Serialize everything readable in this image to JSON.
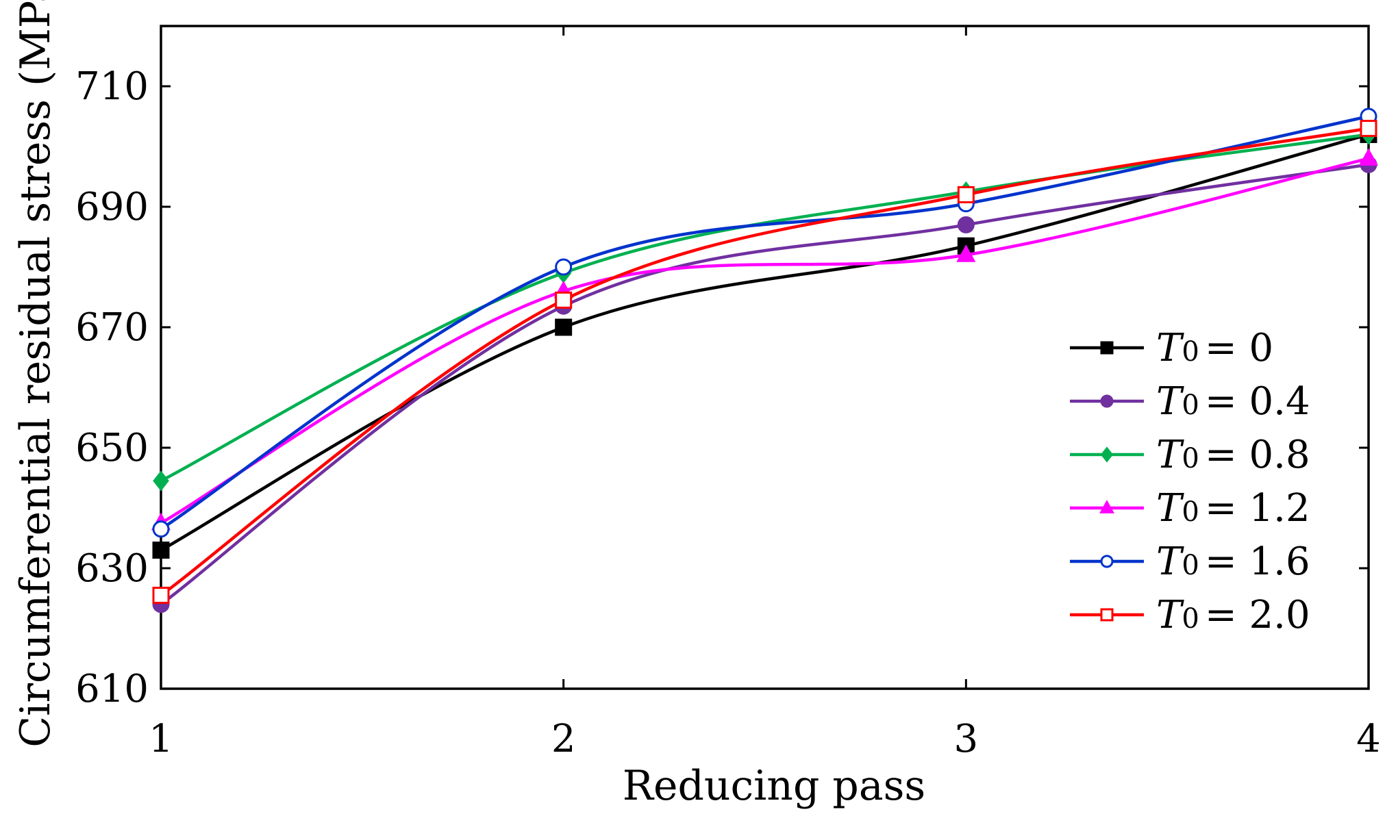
{
  "chart_data": {
    "type": "line",
    "title": "",
    "xlabel": "Reducing pass",
    "ylabel": "Circumferential residual stress (MPa)",
    "x": [
      1,
      2,
      3,
      4
    ],
    "xlim": [
      1,
      4
    ],
    "ylim": [
      610,
      720
    ],
    "xticks": [
      "1",
      "2",
      "3",
      "4"
    ],
    "yticks": [
      610,
      630,
      650,
      670,
      690,
      710
    ],
    "ytick_labels": [
      "610",
      "630",
      "650",
      "670",
      "690",
      "710"
    ],
    "grid": false,
    "legend_position": "right",
    "legend_prefix": "T",
    "legend_subscript": "0",
    "series": [
      {
        "name": "T0 = 0",
        "value_label": "= 0",
        "color": "#000000",
        "marker": "square-filled",
        "values": [
          633.0,
          670.0,
          683.5,
          702.0
        ]
      },
      {
        "name": "T0 = 0.4",
        "value_label": "= 0.4",
        "color": "#7030a0",
        "marker": "circle-filled",
        "values": [
          624.0,
          673.5,
          687.0,
          697.0
        ]
      },
      {
        "name": "T0 = 0.8",
        "value_label": "= 0.8",
        "color": "#00b050",
        "marker": "diamond-filled",
        "values": [
          644.5,
          679.0,
          692.5,
          702.0
        ]
      },
      {
        "name": "T0 = 1.2",
        "value_label": "= 1.2",
        "color": "#ff00ff",
        "marker": "triangle-filled",
        "values": [
          637.5,
          676.0,
          682.0,
          698.0
        ]
      },
      {
        "name": "T0 = 1.6",
        "value_label": "= 1.6",
        "color": "#0033cc",
        "marker": "circle-open",
        "values": [
          636.5,
          680.0,
          690.5,
          705.0
        ]
      },
      {
        "name": "T0 = 2.0",
        "value_label": "= 2.0",
        "color": "#ff0000",
        "marker": "square-open",
        "values": [
          625.5,
          674.5,
          692.0,
          703.0
        ]
      }
    ]
  }
}
